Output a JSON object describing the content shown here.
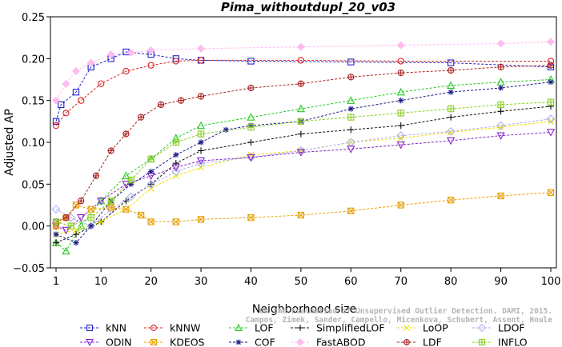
{
  "chart_data": {
    "type": "line",
    "title": "Pima_withoutdupl_20_v03",
    "xlabel": "Neighborhood size",
    "ylabel": "Adjusted AP",
    "xlim": [
      1,
      100
    ],
    "ylim": [
      -0.05,
      0.25
    ],
    "x_ticks": [
      1,
      10,
      20,
      30,
      40,
      50,
      60,
      70,
      80,
      90,
      100
    ],
    "y_ticks": [
      -0.05,
      0.0,
      0.05,
      0.1,
      0.15,
      0.2,
      0.25
    ],
    "y_tick_labels": [
      "−0.05",
      "0.00",
      "0.05",
      "0.10",
      "0.15",
      "0.20",
      "0.25"
    ],
    "grid": false,
    "legend_position": "bottom",
    "watermark": [
      "Campos, Zimek, Sander, Campello, Micenkova, Schubert, Assent, Houle",
      "On the Evaluation of Unsupervised Outlier Detection. DAMI, 2015."
    ],
    "series": [
      {
        "name": "kNN",
        "color": "#2222cc",
        "marker": "square",
        "points": [
          [
            1,
            0.125
          ],
          [
            2,
            0.145
          ],
          [
            5,
            0.16
          ],
          [
            8,
            0.19
          ],
          [
            12,
            0.2
          ],
          [
            15,
            0.208
          ],
          [
            20,
            0.205
          ],
          [
            25,
            0.2
          ],
          [
            30,
            0.198
          ],
          [
            40,
            0.197
          ],
          [
            60,
            0.196
          ],
          [
            80,
            0.195
          ],
          [
            100,
            0.19
          ]
        ]
      },
      {
        "name": "kNNW",
        "color": "#dd2222",
        "marker": "circle",
        "points": [
          [
            1,
            0.12
          ],
          [
            3,
            0.135
          ],
          [
            6,
            0.15
          ],
          [
            10,
            0.17
          ],
          [
            15,
            0.185
          ],
          [
            20,
            0.192
          ],
          [
            25,
            0.197
          ],
          [
            30,
            0.198
          ],
          [
            50,
            0.198
          ],
          [
            70,
            0.197
          ],
          [
            100,
            0.197
          ]
        ]
      },
      {
        "name": "LOF",
        "color": "#22cc22",
        "marker": "triangle-up",
        "points": [
          [
            1,
            -0.02
          ],
          [
            3,
            -0.03
          ],
          [
            6,
            0.0
          ],
          [
            10,
            0.03
          ],
          [
            15,
            0.06
          ],
          [
            20,
            0.08
          ],
          [
            25,
            0.105
          ],
          [
            30,
            0.12
          ],
          [
            40,
            0.13
          ],
          [
            50,
            0.14
          ],
          [
            60,
            0.15
          ],
          [
            70,
            0.16
          ],
          [
            80,
            0.168
          ],
          [
            90,
            0.172
          ],
          [
            100,
            0.175
          ]
        ]
      },
      {
        "name": "SimplifiedLOF",
        "color": "#111111",
        "marker": "plus",
        "points": [
          [
            1,
            -0.02
          ],
          [
            5,
            -0.01
          ],
          [
            10,
            0.005
          ],
          [
            15,
            0.03
          ],
          [
            20,
            0.05
          ],
          [
            25,
            0.075
          ],
          [
            30,
            0.09
          ],
          [
            40,
            0.1
          ],
          [
            50,
            0.11
          ],
          [
            60,
            0.115
          ],
          [
            70,
            0.12
          ],
          [
            80,
            0.13
          ],
          [
            90,
            0.137
          ],
          [
            100,
            0.143
          ]
        ]
      },
      {
        "name": "LoOP",
        "color": "#f0e000",
        "marker": "cross",
        "points": [
          [
            1,
            -0.01
          ],
          [
            5,
            -0.005
          ],
          [
            10,
            0.005
          ],
          [
            15,
            0.02
          ],
          [
            20,
            0.045
          ],
          [
            25,
            0.06
          ],
          [
            30,
            0.07
          ],
          [
            40,
            0.085
          ],
          [
            50,
            0.09
          ],
          [
            60,
            0.1
          ],
          [
            70,
            0.105
          ],
          [
            80,
            0.112
          ],
          [
            90,
            0.118
          ],
          [
            100,
            0.125
          ]
        ]
      },
      {
        "name": "LDOF",
        "color": "#aab0ee",
        "marker": "diamond",
        "points": [
          [
            1,
            0.02
          ],
          [
            4,
            0.01
          ],
          [
            8,
            0.0
          ],
          [
            12,
            0.02
          ],
          [
            16,
            0.035
          ],
          [
            20,
            0.05
          ],
          [
            25,
            0.065
          ],
          [
            30,
            0.075
          ],
          [
            40,
            0.082
          ],
          [
            50,
            0.09
          ],
          [
            60,
            0.1
          ],
          [
            70,
            0.108
          ],
          [
            80,
            0.113
          ],
          [
            90,
            0.12
          ],
          [
            100,
            0.128
          ]
        ]
      },
      {
        "name": "ODIN",
        "color": "#8822cc",
        "marker": "triangle-down",
        "points": [
          [
            1,
            0.0
          ],
          [
            3,
            -0.005
          ],
          [
            6,
            0.01
          ],
          [
            10,
            0.03
          ],
          [
            15,
            0.05
          ],
          [
            20,
            0.06
          ],
          [
            25,
            0.07
          ],
          [
            30,
            0.078
          ],
          [
            40,
            0.082
          ],
          [
            50,
            0.088
          ],
          [
            60,
            0.092
          ],
          [
            70,
            0.097
          ],
          [
            80,
            0.102
          ],
          [
            90,
            0.108
          ],
          [
            100,
            0.112
          ]
        ]
      },
      {
        "name": "KDEOS",
        "color": "#e8a000",
        "marker": "square-x",
        "points": [
          [
            1,
            0.0
          ],
          [
            3,
            0.01
          ],
          [
            5,
            0.025
          ],
          [
            8,
            0.02
          ],
          [
            12,
            0.022
          ],
          [
            15,
            0.02
          ],
          [
            18,
            0.013
          ],
          [
            20,
            0.005
          ],
          [
            25,
            0.005
          ],
          [
            30,
            0.008
          ],
          [
            40,
            0.01
          ],
          [
            50,
            0.013
          ],
          [
            60,
            0.018
          ],
          [
            70,
            0.025
          ],
          [
            80,
            0.031
          ],
          [
            90,
            0.036
          ],
          [
            100,
            0.04
          ]
        ]
      },
      {
        "name": "COF",
        "color": "#1a1a88",
        "marker": "asterisk",
        "points": [
          [
            1,
            -0.01
          ],
          [
            5,
            -0.02
          ],
          [
            8,
            0.0
          ],
          [
            12,
            0.03
          ],
          [
            16,
            0.05
          ],
          [
            20,
            0.065
          ],
          [
            25,
            0.085
          ],
          [
            30,
            0.1
          ],
          [
            35,
            0.115
          ],
          [
            40,
            0.12
          ],
          [
            50,
            0.125
          ],
          [
            60,
            0.14
          ],
          [
            70,
            0.15
          ],
          [
            80,
            0.16
          ],
          [
            90,
            0.165
          ],
          [
            100,
            0.172
          ]
        ]
      },
      {
        "name": "FastABOD",
        "color": "#ffbbee",
        "marker": "diamond-filled",
        "points": [
          [
            1,
            0.15
          ],
          [
            3,
            0.17
          ],
          [
            5,
            0.185
          ],
          [
            8,
            0.195
          ],
          [
            12,
            0.205
          ],
          [
            16,
            0.207
          ],
          [
            20,
            0.21
          ],
          [
            30,
            0.212
          ],
          [
            50,
            0.214
          ],
          [
            70,
            0.216
          ],
          [
            90,
            0.218
          ],
          [
            100,
            0.22
          ]
        ]
      },
      {
        "name": "LDF",
        "color": "#aa2222",
        "marker": "circle-plus",
        "points": [
          [
            1,
            0.005
          ],
          [
            3,
            0.01
          ],
          [
            6,
            0.03
          ],
          [
            9,
            0.06
          ],
          [
            12,
            0.09
          ],
          [
            15,
            0.11
          ],
          [
            18,
            0.13
          ],
          [
            22,
            0.145
          ],
          [
            26,
            0.15
          ],
          [
            30,
            0.155
          ],
          [
            40,
            0.165
          ],
          [
            50,
            0.17
          ],
          [
            60,
            0.178
          ],
          [
            70,
            0.183
          ],
          [
            80,
            0.186
          ],
          [
            90,
            0.19
          ],
          [
            100,
            0.192
          ]
        ]
      },
      {
        "name": "INFLO",
        "color": "#88cc22",
        "marker": "square-cross",
        "points": [
          [
            1,
            0.005
          ],
          [
            4,
            0.0
          ],
          [
            8,
            0.01
          ],
          [
            12,
            0.03
          ],
          [
            16,
            0.055
          ],
          [
            20,
            0.08
          ],
          [
            25,
            0.1
          ],
          [
            30,
            0.11
          ],
          [
            40,
            0.118
          ],
          [
            50,
            0.125
          ],
          [
            60,
            0.13
          ],
          [
            70,
            0.135
          ],
          [
            80,
            0.14
          ],
          [
            90,
            0.145
          ],
          [
            100,
            0.148
          ]
        ]
      }
    ]
  }
}
